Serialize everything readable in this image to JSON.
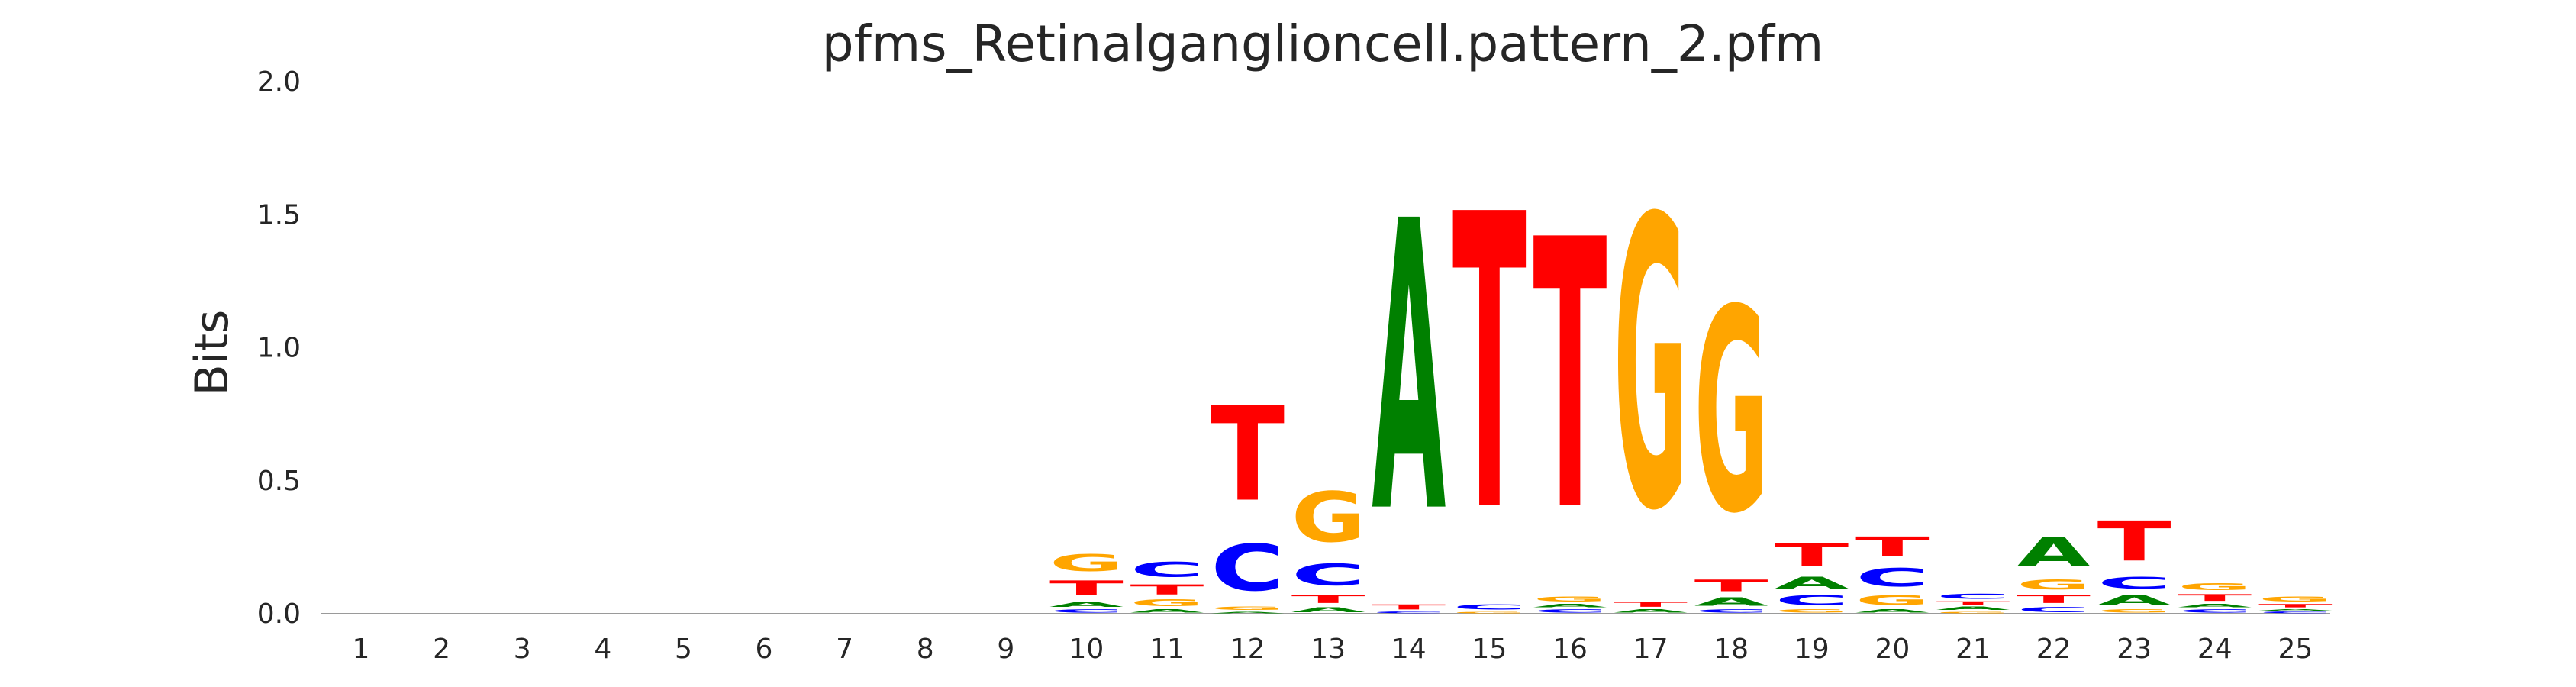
{
  "chart_data": {
    "type": "sequence-logo",
    "title": "pfms_Retinalganglioncell.pattern_2.pfm",
    "xlabel": "",
    "ylabel": "Bits",
    "ylim": [
      0,
      2.0
    ],
    "yticks": [
      "0.0",
      "0.5",
      "1.0",
      "1.5",
      "2.0"
    ],
    "grid": false,
    "legend": "none",
    "colors": {
      "A": "#008000",
      "C": "#0000ff",
      "G": "#ffa500",
      "T": "#ff0000"
    },
    "positions": [
      {
        "label": "1",
        "letters": []
      },
      {
        "label": "2",
        "letters": []
      },
      {
        "label": "3",
        "letters": []
      },
      {
        "label": "4",
        "letters": []
      },
      {
        "label": "5",
        "letters": []
      },
      {
        "label": "6",
        "letters": []
      },
      {
        "label": "7",
        "letters": []
      },
      {
        "label": "8",
        "letters": []
      },
      {
        "label": "9",
        "letters": []
      },
      {
        "label": "10",
        "letters": [
          {
            "base": "C",
            "bits": 0.02
          },
          {
            "base": "A",
            "bits": 0.03
          },
          {
            "base": "T",
            "bits": 0.09
          },
          {
            "base": "G",
            "bits": 0.1
          }
        ]
      },
      {
        "label": "11",
        "letters": [
          {
            "base": "A",
            "bits": 0.02
          },
          {
            "base": "G",
            "bits": 0.04
          },
          {
            "base": "T",
            "bits": 0.06
          },
          {
            "base": "C",
            "bits": 0.09
          }
        ]
      },
      {
        "label": "12",
        "letters": [
          {
            "base": "A",
            "bits": 0.01
          },
          {
            "base": "G",
            "bits": 0.02
          },
          {
            "base": "C",
            "bits": 0.28
          },
          {
            "base": "T",
            "bits": 0.57
          }
        ]
      },
      {
        "label": "13",
        "letters": [
          {
            "base": "A",
            "bits": 0.03
          },
          {
            "base": "T",
            "bits": 0.05
          },
          {
            "base": "C",
            "bits": 0.13
          },
          {
            "base": "G",
            "bits": 0.3
          }
        ]
      },
      {
        "label": "14",
        "letters": [
          {
            "base": "C",
            "bits": 0.01
          },
          {
            "base": "T",
            "bits": 0.03
          },
          {
            "base": "A",
            "bits": 1.74
          }
        ]
      },
      {
        "label": "15",
        "letters": [
          {
            "base": "G",
            "bits": 0.01
          },
          {
            "base": "C",
            "bits": 0.03
          },
          {
            "base": "T",
            "bits": 1.77
          }
        ]
      },
      {
        "label": "16",
        "letters": [
          {
            "base": "C",
            "bits": 0.02
          },
          {
            "base": "A",
            "bits": 0.02
          },
          {
            "base": "G",
            "bits": 0.03
          },
          {
            "base": "T",
            "bits": 1.62
          }
        ]
      },
      {
        "label": "17",
        "letters": [
          {
            "base": "A",
            "bits": 0.02
          },
          {
            "base": "T",
            "bits": 0.03
          },
          {
            "base": "G",
            "bits": 1.74
          }
        ]
      },
      {
        "label": "18",
        "letters": [
          {
            "base": "C",
            "bits": 0.02
          },
          {
            "base": "A",
            "bits": 0.05
          },
          {
            "base": "T",
            "bits": 0.07
          },
          {
            "base": "G",
            "bits": 1.22
          }
        ]
      },
      {
        "label": "19",
        "letters": [
          {
            "base": "G",
            "bits": 0.02
          },
          {
            "base": "C",
            "bits": 0.06
          },
          {
            "base": "A",
            "bits": 0.07
          },
          {
            "base": "T",
            "bits": 0.14
          }
        ]
      },
      {
        "label": "20",
        "letters": [
          {
            "base": "A",
            "bits": 0.02
          },
          {
            "base": "G",
            "bits": 0.06
          },
          {
            "base": "C",
            "bits": 0.11
          },
          {
            "base": "T",
            "bits": 0.12
          }
        ]
      },
      {
        "label": "21",
        "letters": [
          {
            "base": "G",
            "bits": 0.01
          },
          {
            "base": "A",
            "bits": 0.02
          },
          {
            "base": "T",
            "bits": 0.02
          },
          {
            "base": "C",
            "bits": 0.03
          }
        ]
      },
      {
        "label": "22",
        "letters": [
          {
            "base": "C",
            "bits": 0.03
          },
          {
            "base": "T",
            "bits": 0.05
          },
          {
            "base": "G",
            "bits": 0.06
          },
          {
            "base": "A",
            "bits": 0.18
          }
        ]
      },
      {
        "label": "23",
        "letters": [
          {
            "base": "G",
            "bits": 0.02
          },
          {
            "base": "A",
            "bits": 0.06
          },
          {
            "base": "C",
            "bits": 0.07
          },
          {
            "base": "T",
            "bits": 0.24
          }
        ]
      },
      {
        "label": "24",
        "letters": [
          {
            "base": "C",
            "bits": 0.02
          },
          {
            "base": "A",
            "bits": 0.02
          },
          {
            "base": "T",
            "bits": 0.04
          },
          {
            "base": "G",
            "bits": 0.04
          }
        ]
      },
      {
        "label": "25",
        "letters": [
          {
            "base": "C",
            "bits": 0.01
          },
          {
            "base": "A",
            "bits": 0.01
          },
          {
            "base": "T",
            "bits": 0.02
          },
          {
            "base": "G",
            "bits": 0.03
          }
        ]
      }
    ]
  }
}
